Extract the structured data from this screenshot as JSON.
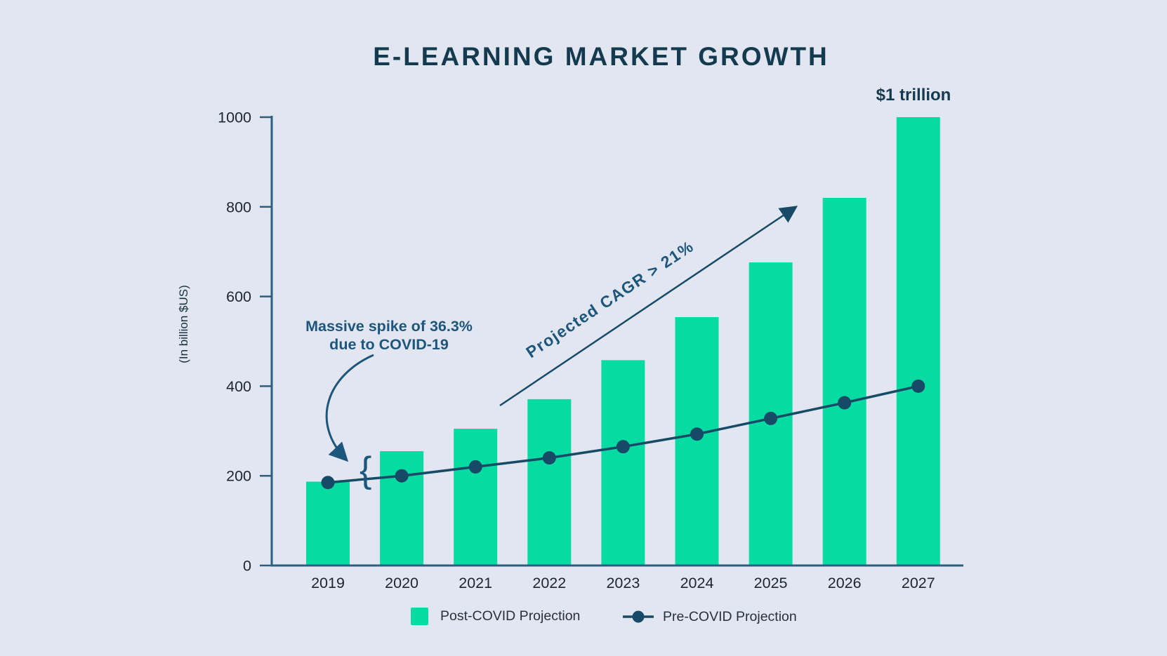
{
  "chart_data": {
    "type": "bar+line",
    "title": "E-LEARNING MARKET GROWTH",
    "categories": [
      "2019",
      "2020",
      "2021",
      "2022",
      "2023",
      "2024",
      "2025",
      "2026",
      "2027"
    ],
    "series": [
      {
        "name": "Post-COVID Projection",
        "type": "bar",
        "color": "#06DBA2",
        "values": [
          187,
          255,
          305,
          371,
          458,
          554,
          676,
          820,
          1000
        ]
      },
      {
        "name": "Pre-COVID Projection",
        "type": "line",
        "color": "#174A66",
        "values": [
          185,
          200,
          220,
          240,
          265,
          293,
          328,
          363,
          400
        ]
      }
    ],
    "ylabel": "(In billion $US)",
    "ylim": [
      0,
      1000
    ],
    "yticks": [
      0,
      200,
      400,
      600,
      800,
      1000
    ],
    "grid": false,
    "legend_position": "bottom"
  },
  "annotations": {
    "spike_line1": "Massive spike of 36.3%",
    "spike_line2": "due to COVID-19",
    "spike_brace": "{",
    "cagr": "Projected CAGR > 21%",
    "trillion": "$1 trillion"
  },
  "colors": {
    "background": "#E2E6F1",
    "bar": "#06DBA2",
    "line": "#174A66",
    "title_text": "#143A50",
    "annotation_text": "#1D567C",
    "axis": "#2B5E80",
    "tick_text": "#1B2630"
  }
}
